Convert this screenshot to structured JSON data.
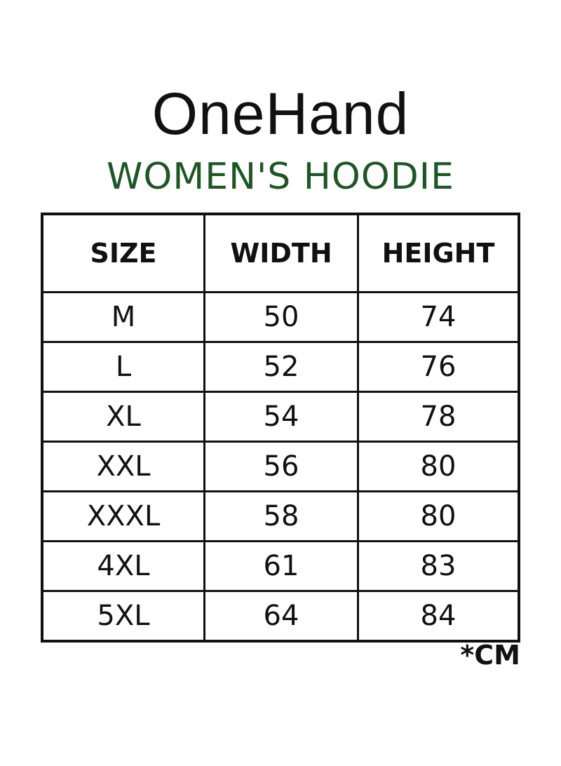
{
  "brand": {
    "name": "OneHand"
  },
  "subtitle": "WOMEN'S HOODIE",
  "colors": {
    "subtitle": "#1e5626",
    "text": "#111111"
  },
  "table": {
    "headers": [
      "SIZE",
      "WIDTH",
      "HEIGHT"
    ],
    "rows": [
      [
        "M",
        "50",
        "74"
      ],
      [
        "L",
        "52",
        "76"
      ],
      [
        "XL",
        "54",
        "78"
      ],
      [
        "XXL",
        "56",
        "80"
      ],
      [
        "XXXL",
        "58",
        "80"
      ],
      [
        "4XL",
        "61",
        "83"
      ],
      [
        "5XL",
        "64",
        "84"
      ]
    ]
  },
  "unit": "*CM"
}
